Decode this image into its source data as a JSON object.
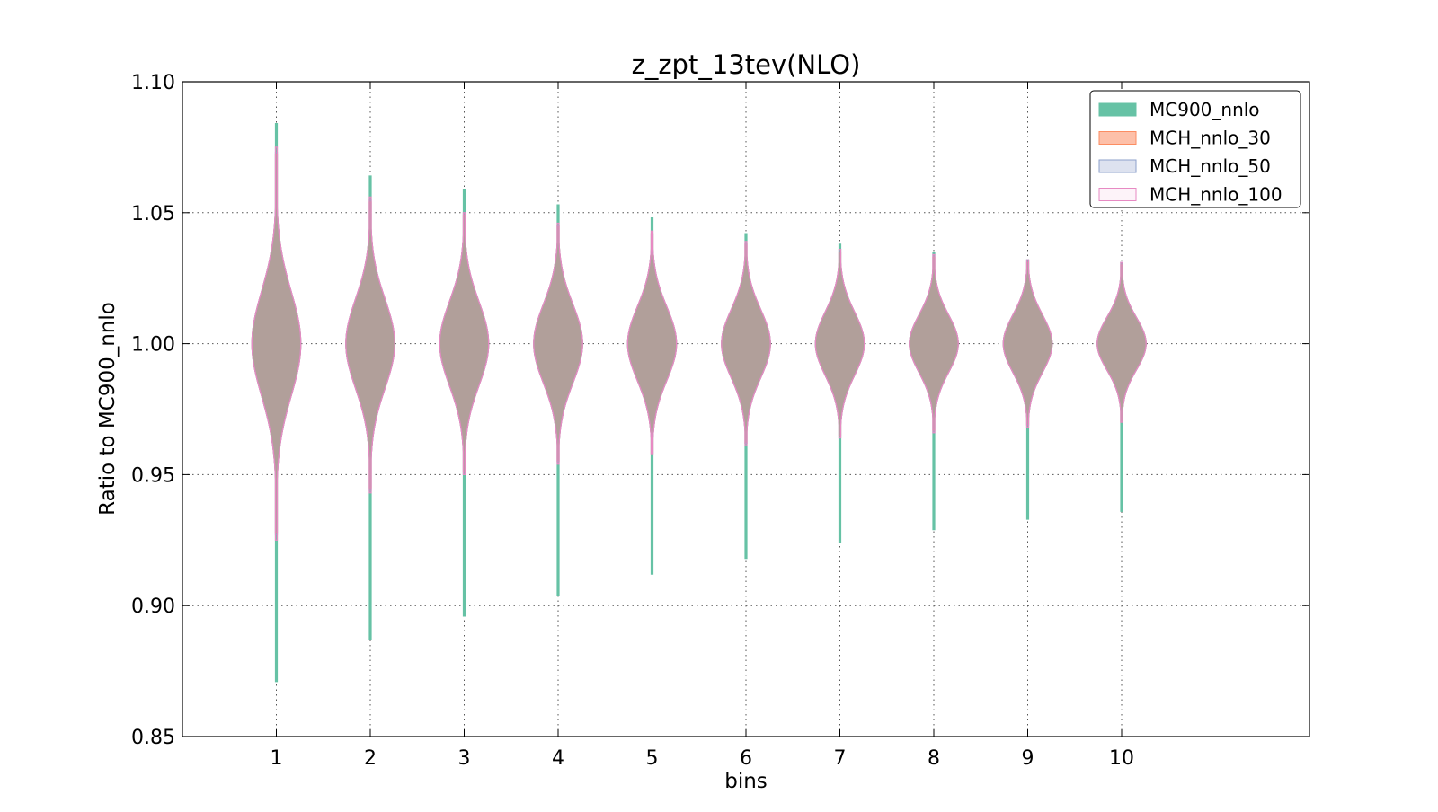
{
  "chart_data": {
    "type": "violin",
    "title": "z_zpt_13tev(NLO)",
    "xlabel": "bins",
    "ylabel": "Ratio to MC900_nnlo",
    "xlim": [
      0,
      12
    ],
    "ylim": [
      0.85,
      1.1
    ],
    "x_ticks": [
      1,
      2,
      3,
      4,
      5,
      6,
      7,
      8,
      9,
      10
    ],
    "x_tick_labels": [
      "1",
      "2",
      "3",
      "4",
      "5",
      "6",
      "7",
      "8",
      "9",
      "10"
    ],
    "y_ticks": [
      0.85,
      0.9,
      0.95,
      1.0,
      1.05,
      1.1
    ],
    "y_tick_labels": [
      "0.85",
      "0.90",
      "0.95",
      "1.00",
      "1.05",
      "1.10"
    ],
    "grid": true,
    "legend_position": "top-right",
    "violin_half_width": 0.26,
    "series": [
      {
        "name": "MC900_nnlo",
        "fill": "#66c2a5",
        "edge": "#66c2a5",
        "fill_opacity": 1.0,
        "violins": [
          {
            "bin": 1,
            "center": 1.0,
            "sigma": 0.02,
            "min": 0.871,
            "max": 1.084
          },
          {
            "bin": 2,
            "center": 1.0,
            "sigma": 0.017,
            "min": 0.887,
            "max": 1.064
          },
          {
            "bin": 3,
            "center": 1.0,
            "sigma": 0.016,
            "min": 0.896,
            "max": 1.059
          },
          {
            "bin": 4,
            "center": 1.0,
            "sigma": 0.015,
            "min": 0.904,
            "max": 1.053
          },
          {
            "bin": 5,
            "center": 1.0,
            "sigma": 0.014,
            "min": 0.912,
            "max": 1.048
          },
          {
            "bin": 6,
            "center": 1.0,
            "sigma": 0.013,
            "min": 0.918,
            "max": 1.042
          },
          {
            "bin": 7,
            "center": 1.0,
            "sigma": 0.012,
            "min": 0.924,
            "max": 1.038
          },
          {
            "bin": 8,
            "center": 1.0,
            "sigma": 0.011,
            "min": 0.929,
            "max": 1.035
          },
          {
            "bin": 9,
            "center": 1.0,
            "sigma": 0.011,
            "min": 0.933,
            "max": 1.032
          },
          {
            "bin": 10,
            "center": 1.0,
            "sigma": 0.01,
            "min": 0.936,
            "max": 1.031
          }
        ]
      },
      {
        "name": "MCH_nnlo_30",
        "fill": "#fc8d62",
        "edge": "#fc8d62",
        "fill_opacity": 0.55,
        "violins": [
          {
            "bin": 1,
            "center": 1.0,
            "sigma": 0.02,
            "min": 0.928,
            "max": 1.072
          },
          {
            "bin": 2,
            "center": 1.0,
            "sigma": 0.017,
            "min": 0.945,
            "max": 1.054
          },
          {
            "bin": 3,
            "center": 1.0,
            "sigma": 0.016,
            "min": 0.951,
            "max": 1.049
          },
          {
            "bin": 4,
            "center": 1.0,
            "sigma": 0.015,
            "min": 0.955,
            "max": 1.045
          },
          {
            "bin": 5,
            "center": 1.0,
            "sigma": 0.014,
            "min": 0.958,
            "max": 1.042
          },
          {
            "bin": 6,
            "center": 1.0,
            "sigma": 0.013,
            "min": 0.962,
            "max": 1.038
          },
          {
            "bin": 7,
            "center": 1.0,
            "sigma": 0.012,
            "min": 0.965,
            "max": 1.035
          },
          {
            "bin": 8,
            "center": 1.0,
            "sigma": 0.011,
            "min": 0.967,
            "max": 1.033
          },
          {
            "bin": 9,
            "center": 1.0,
            "sigma": 0.011,
            "min": 0.969,
            "max": 1.031
          },
          {
            "bin": 10,
            "center": 1.0,
            "sigma": 0.01,
            "min": 0.97,
            "max": 1.03
          }
        ]
      },
      {
        "name": "MCH_nnlo_50",
        "fill": "#8da0cb",
        "edge": "#8da0cb",
        "fill_opacity": 0.3,
        "violins": [
          {
            "bin": 1,
            "center": 1.0,
            "sigma": 0.02,
            "min": 0.927,
            "max": 1.073
          },
          {
            "bin": 2,
            "center": 1.0,
            "sigma": 0.017,
            "min": 0.944,
            "max": 1.055
          },
          {
            "bin": 3,
            "center": 1.0,
            "sigma": 0.016,
            "min": 0.95,
            "max": 1.05
          },
          {
            "bin": 4,
            "center": 1.0,
            "sigma": 0.015,
            "min": 0.955,
            "max": 1.045
          },
          {
            "bin": 5,
            "center": 1.0,
            "sigma": 0.014,
            "min": 0.958,
            "max": 1.042
          },
          {
            "bin": 6,
            "center": 1.0,
            "sigma": 0.013,
            "min": 0.962,
            "max": 1.038
          },
          {
            "bin": 7,
            "center": 1.0,
            "sigma": 0.012,
            "min": 0.964,
            "max": 1.036
          },
          {
            "bin": 8,
            "center": 1.0,
            "sigma": 0.011,
            "min": 0.966,
            "max": 1.034
          },
          {
            "bin": 9,
            "center": 1.0,
            "sigma": 0.011,
            "min": 0.969,
            "max": 1.032
          },
          {
            "bin": 10,
            "center": 1.0,
            "sigma": 0.01,
            "min": 0.97,
            "max": 1.031
          }
        ]
      },
      {
        "name": "MCH_nnlo_100",
        "fill": "#e78ac3",
        "edge": "#e78ac3",
        "fill_opacity": 0.1,
        "violins": [
          {
            "bin": 1,
            "center": 1.0,
            "sigma": 0.02,
            "min": 0.925,
            "max": 1.075
          },
          {
            "bin": 2,
            "center": 1.0,
            "sigma": 0.017,
            "min": 0.943,
            "max": 1.056
          },
          {
            "bin": 3,
            "center": 1.0,
            "sigma": 0.016,
            "min": 0.95,
            "max": 1.05
          },
          {
            "bin": 4,
            "center": 1.0,
            "sigma": 0.015,
            "min": 0.954,
            "max": 1.046
          },
          {
            "bin": 5,
            "center": 1.0,
            "sigma": 0.014,
            "min": 0.958,
            "max": 1.043
          },
          {
            "bin": 6,
            "center": 1.0,
            "sigma": 0.013,
            "min": 0.961,
            "max": 1.039
          },
          {
            "bin": 7,
            "center": 1.0,
            "sigma": 0.012,
            "min": 0.964,
            "max": 1.036
          },
          {
            "bin": 8,
            "center": 1.0,
            "sigma": 0.011,
            "min": 0.966,
            "max": 1.034
          },
          {
            "bin": 9,
            "center": 1.0,
            "sigma": 0.011,
            "min": 0.968,
            "max": 1.032
          },
          {
            "bin": 10,
            "center": 1.0,
            "sigma": 0.01,
            "min": 0.97,
            "max": 1.031
          }
        ]
      }
    ]
  }
}
